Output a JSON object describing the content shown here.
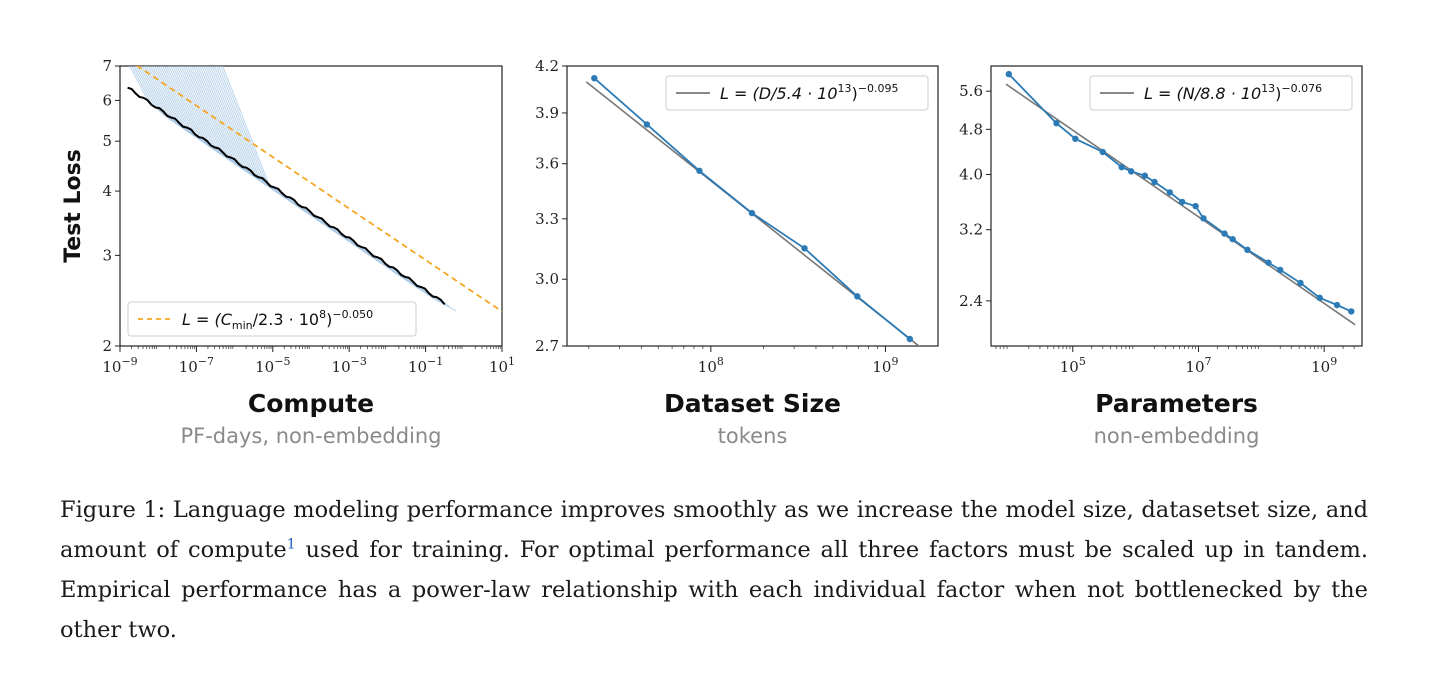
{
  "figure": {
    "caption": {
      "label": "Figure 1:",
      "text_before_footnote": " Language modeling performance improves smoothly as we increase the model size, datasetset size, and amount of compute",
      "footnote_marker": "1",
      "text_after_footnote": " used for training. For optimal performance all three factors must be scaled up in tandem. Empirical performance has a power-law relationship with each individual factor when not bottlenecked by the other two."
    }
  },
  "chart_data": [
    {
      "type": "line",
      "ylabel": "Test Loss",
      "xlabel": "Compute",
      "xlabel_sub": "PF-days, non-embedding",
      "x_scale": "log",
      "y_scale": "log",
      "xlim": [
        1e-09,
        10
      ],
      "ylim": [
        2,
        7
      ],
      "x_ticks": [
        {
          "base": "10",
          "exp": "−9"
        },
        {
          "base": "10",
          "exp": "−7"
        },
        {
          "base": "10",
          "exp": "−5"
        },
        {
          "base": "10",
          "exp": "−3"
        },
        {
          "base": "10",
          "exp": "−1"
        },
        {
          "base": "10",
          "exp": "1"
        }
      ],
      "y_ticks": [
        "2",
        "3",
        "4",
        "5",
        "6",
        "7"
      ],
      "legend": {
        "placement": "bottom-left",
        "text": "L = (C",
        "sub": "min",
        "text2": "/2.3 · 10",
        "sup1": "8",
        "text3": ")",
        "sup2": "−0.050"
      },
      "fit": {
        "scale": 230000000.0,
        "exponent": -0.05,
        "color": "#f5a623",
        "style": "dashed"
      },
      "frontier_color": "#000000",
      "training_curve_color": "#a9c9e6"
    },
    {
      "type": "line",
      "xlabel": "Dataset Size",
      "xlabel_sub": "tokens",
      "x_scale": "log",
      "y_scale": "log",
      "xlim": [
        15000000.0,
        2000000000.0
      ],
      "ylim": [
        2.7,
        4.2
      ],
      "x_ticks": [
        {
          "base": "10",
          "exp": "8"
        },
        {
          "base": "10",
          "exp": "9"
        }
      ],
      "y_ticks": [
        "2.7",
        "3.0",
        "3.3",
        "3.6",
        "3.9",
        "4.2"
      ],
      "legend": {
        "placement": "top-right",
        "text": "L = (D/5.4 · 10",
        "sup1": "13",
        "text3": ")",
        "sup2": "−0.095"
      },
      "fit": {
        "scale": 54000000000000.0,
        "exponent": -0.095,
        "color": "#777777"
      },
      "series": [
        {
          "color": "#2c7bb6",
          "x": [
            21500000.0,
            43000000.0,
            86000000.0,
            172000000.0,
            344000000.0,
            690000000.0,
            1380000000.0
          ],
          "y": [
            4.12,
            3.83,
            3.56,
            3.33,
            3.15,
            2.92,
            2.73
          ]
        }
      ]
    },
    {
      "type": "line",
      "xlabel": "Parameters",
      "xlabel_sub": "non-embedding",
      "x_scale": "log",
      "y_scale": "log",
      "xlim": [
        5000.0,
        4000000000.0
      ],
      "ylim": [
        2.0,
        6.2
      ],
      "x_ticks": [
        {
          "base": "10",
          "exp": "5"
        },
        {
          "base": "10",
          "exp": "7"
        },
        {
          "base": "10",
          "exp": "9"
        }
      ],
      "y_ticks": [
        "2.4",
        "3.2",
        "4.0",
        "4.8",
        "5.6"
      ],
      "legend": {
        "placement": "top-right",
        "text": "L = (N/8.8 · 10",
        "sup1": "13",
        "text3": ")",
        "sup2": "−0.076"
      },
      "fit": {
        "scale": 88000000000000.0,
        "exponent": -0.076,
        "color": "#777777"
      },
      "series": [
        {
          "color": "#2c7bb6",
          "x": [
            9600.0,
            55000.0,
            110000.0,
            300000.0,
            600000.0,
            850000.0,
            1400000.0,
            2000000.0,
            3500000.0,
            5500000.0,
            9000000.0,
            12000000.0,
            26000000.0,
            35000000.0,
            60000000.0,
            130000000.0,
            200000000.0,
            420000000.0,
            850000000.0,
            1600000000.0,
            2700000000.0
          ],
          "y": [
            6.0,
            4.92,
            4.62,
            4.38,
            4.12,
            4.05,
            3.98,
            3.88,
            3.72,
            3.58,
            3.52,
            3.35,
            3.15,
            3.08,
            2.95,
            2.8,
            2.72,
            2.58,
            2.43,
            2.36,
            2.3
          ]
        }
      ]
    }
  ]
}
